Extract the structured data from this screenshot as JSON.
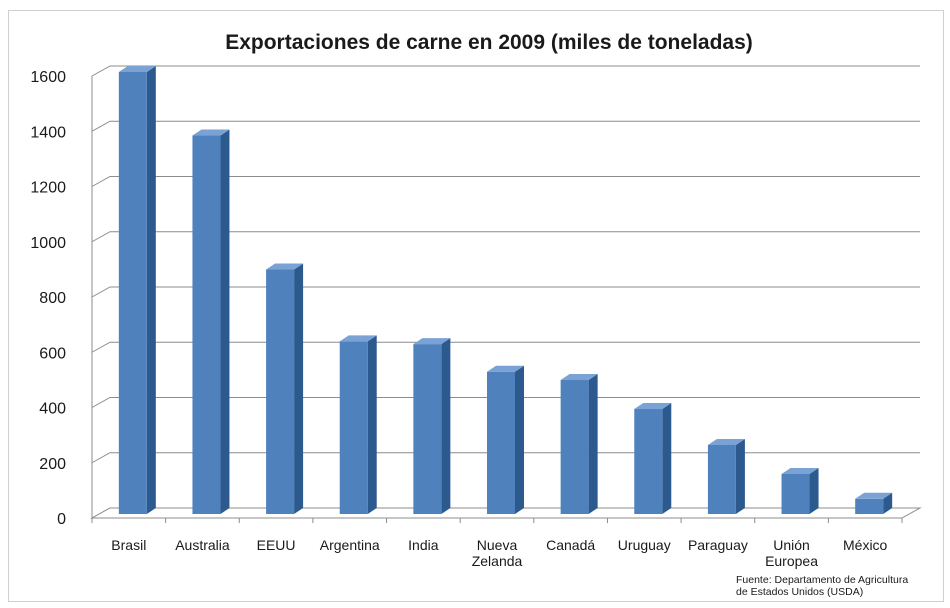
{
  "chart_data": {
    "type": "bar",
    "title": "Exportaciones de carne en 2009 (miles de toneladas)",
    "categories": [
      [
        "Brasil"
      ],
      [
        "Australia"
      ],
      [
        "EEUU"
      ],
      [
        "Argentina"
      ],
      [
        "India"
      ],
      [
        "Nueva",
        "Zelanda"
      ],
      [
        "Canadá"
      ],
      [
        "Uruguay"
      ],
      [
        "Paraguay"
      ],
      [
        "Unión",
        "Europea"
      ],
      [
        "México"
      ]
    ],
    "values": [
      1600,
      1370,
      885,
      625,
      615,
      515,
      485,
      380,
      250,
      145,
      55
    ],
    "ylim": [
      0,
      1600
    ],
    "yticks": [
      0,
      200,
      400,
      600,
      800,
      1000,
      1200,
      1400,
      1600
    ],
    "grid": true,
    "style": "3d-column",
    "bar_color": "#4f81bd",
    "bar_side_color": "#2c5a8f",
    "bar_top_color": "#7aa2d4",
    "source_note": [
      "Fuente: Departamento de Agricultura",
      "de Estados Unidos (USDA)"
    ]
  }
}
